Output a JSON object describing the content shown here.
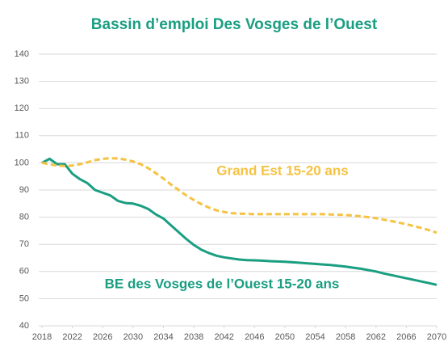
{
  "chart_data": {
    "type": "line",
    "title": "Bassin d’emploi Des Vosges de l’Ouest",
    "x": [
      2018,
      2019,
      2020,
      2021,
      2022,
      2023,
      2024,
      2025,
      2026,
      2027,
      2028,
      2029,
      2030,
      2031,
      2032,
      2033,
      2034,
      2035,
      2036,
      2037,
      2038,
      2039,
      2040,
      2041,
      2042,
      2043,
      2044,
      2045,
      2046,
      2047,
      2048,
      2049,
      2050,
      2051,
      2052,
      2053,
      2054,
      2055,
      2056,
      2057,
      2058,
      2059,
      2060,
      2061,
      2062,
      2063,
      2064,
      2065,
      2066,
      2067,
      2068,
      2069,
      2070
    ],
    "series": [
      {
        "name": "BE des Vosges de l’Ouest 15-20 ans",
        "color": "#1a9e82",
        "dashed": false,
        "values": [
          100,
          101.5,
          99.5,
          99.5,
          96,
          94,
          92.5,
          90,
          89,
          88,
          86,
          85.2,
          85,
          84.2,
          83,
          81,
          79.5,
          77,
          74.5,
          72,
          69.8,
          68,
          66.8,
          65.8,
          65.2,
          64.8,
          64.4,
          64.2,
          64.1,
          64,
          63.8,
          63.7,
          63.6,
          63.4,
          63.2,
          63,
          62.8,
          62.6,
          62.4,
          62.1,
          61.8,
          61.4,
          61,
          60.5,
          60,
          59.3,
          58.7,
          58.1,
          57.5,
          56.9,
          56.3,
          55.7,
          55.1
        ]
      },
      {
        "name": "Grand Est 15-20 ans",
        "color": "#f5c242",
        "dashed": true,
        "values": [
          100,
          99.5,
          99,
          98.8,
          99,
          99.5,
          100.2,
          101,
          101.5,
          101.7,
          101.6,
          101.2,
          100.5,
          99.5,
          98,
          96.2,
          94.2,
          92,
          90,
          88,
          86.3,
          84.8,
          83.5,
          82.5,
          81.9,
          81.5,
          81.3,
          81.2,
          81.1,
          81.1,
          81.1,
          81.1,
          81.1,
          81.1,
          81.1,
          81.1,
          81.1,
          81.1,
          81,
          80.9,
          80.8,
          80.6,
          80.3,
          80,
          79.6,
          79.1,
          78.6,
          78,
          77.4,
          76.7,
          76,
          75.2,
          74.3
        ]
      }
    ],
    "xlim": [
      2018,
      2070
    ],
    "xticks": [
      2018,
      2022,
      2026,
      2030,
      2034,
      2038,
      2042,
      2046,
      2050,
      2054,
      2058,
      2062,
      2066,
      2070
    ],
    "ylim": [
      40,
      140
    ],
    "yticks": [
      40,
      50,
      60,
      70,
      80,
      90,
      100,
      110,
      120,
      130,
      140
    ],
    "grid": true
  }
}
